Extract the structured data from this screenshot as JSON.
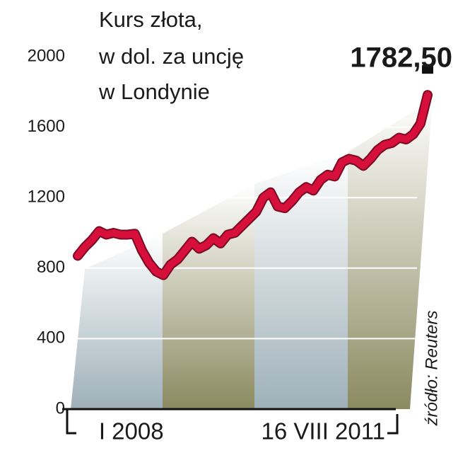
{
  "chart_data": {
    "type": "line",
    "title_lines": [
      "Kurs złota,",
      "w dol. za uncję",
      "w Londynie"
    ],
    "source": "źródło: Reuters",
    "categories": [
      null,
      null,
      null,
      null,
      null,
      null,
      null,
      "I 2008",
      null,
      null,
      null,
      null,
      null,
      null,
      null,
      null,
      null,
      null,
      null,
      null,
      null,
      null,
      null,
      null,
      null,
      null,
      null,
      null,
      null,
      null,
      null,
      null,
      null,
      null,
      null,
      null,
      null,
      null,
      null,
      null,
      null,
      null,
      null,
      null,
      null,
      null,
      null,
      null,
      null,
      "16 VIII 2011"
    ],
    "values": [
      870,
      920,
      960,
      1010,
      990,
      1000,
      990,
      990,
      995,
      900,
      830,
      780,
      760,
      820,
      850,
      900,
      950,
      910,
      930,
      970,
      940,
      990,
      1000,
      1040,
      1080,
      1120,
      1200,
      1230,
      1150,
      1140,
      1180,
      1230,
      1260,
      1240,
      1300,
      1330,
      1320,
      1400,
      1420,
      1410,
      1380,
      1420,
      1470,
      1500,
      1510,
      1540,
      1530,
      1560,
      1620,
      1782.5
    ],
    "value_labels": [
      null,
      null,
      null,
      null,
      null,
      null,
      null,
      null,
      null,
      null,
      null,
      null,
      null,
      null,
      null,
      null,
      null,
      null,
      null,
      null,
      null,
      null,
      null,
      null,
      null,
      null,
      null,
      null,
      null,
      null,
      null,
      null,
      null,
      null,
      null,
      null,
      null,
      null,
      null,
      null,
      null,
      null,
      null,
      null,
      null,
      null,
      null,
      null,
      null,
      "1782,50"
    ],
    "color": "#d6103b",
    "ylim": [
      0,
      2000
    ],
    "yticks": [
      0,
      400,
      800,
      1200,
      1600,
      2000
    ],
    "grid": true
  }
}
